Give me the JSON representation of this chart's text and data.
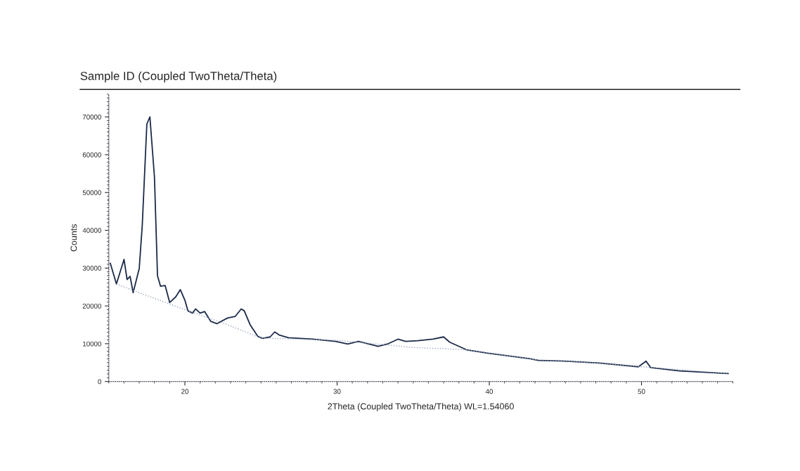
{
  "chart_data": {
    "type": "line",
    "title": "Sample ID (Coupled TwoTheta/Theta)",
    "xlabel": "2Theta (Coupled TwoTheta/Theta) WL=1.54060",
    "ylabel": "Counts",
    "xlim": [
      15,
      56
    ],
    "xticks": [
      20,
      30,
      40,
      50
    ],
    "ylim": [
      0,
      76000
    ],
    "yticks": [
      0,
      10000,
      20000,
      30000,
      40000,
      50000,
      60000,
      70000
    ],
    "grid": false,
    "legend": false,
    "marker": "none",
    "series": [
      {
        "color": "#1c2a48",
        "line_style": "solid",
        "x": [
          15.1,
          15.5,
          16.0,
          16.2,
          16.4,
          16.6,
          17.0,
          17.2,
          17.5,
          17.7,
          18.0,
          18.2,
          18.4,
          18.7,
          19.0,
          19.4,
          19.7,
          20.0,
          20.2,
          20.5,
          20.7,
          21.0,
          21.3,
          21.7,
          22.1,
          22.8,
          23.3,
          23.7,
          23.9,
          24.3,
          24.8,
          25.1,
          25.6,
          25.9,
          26.2,
          26.8,
          28.4,
          29.9,
          30.7,
          31.4,
          32.7,
          33.3,
          34.0,
          34.5,
          35.3,
          36.3,
          37.0,
          37.4,
          38.5,
          39.9,
          41.4,
          42.7,
          43.2,
          44.9,
          47.2,
          49.8,
          50.3,
          50.6,
          52.5,
          55.7
        ],
        "values": [
          31300,
          25800,
          32300,
          27000,
          27800,
          23500,
          29900,
          41400,
          68100,
          70000,
          54100,
          28000,
          25200,
          25400,
          20900,
          22400,
          24300,
          21500,
          18700,
          18100,
          19200,
          18100,
          18500,
          15900,
          15300,
          16800,
          17200,
          19200,
          18700,
          14900,
          11900,
          11400,
          11800,
          13100,
          12300,
          11600,
          11200,
          10600,
          9900,
          10600,
          9300,
          9900,
          11200,
          10600,
          10800,
          11200,
          11800,
          10400,
          8400,
          7500,
          6700,
          6000,
          5600,
          5400,
          4900,
          3900,
          5400,
          3700,
          2800,
          2100
        ]
      },
      {
        "color": "#9aa8c0",
        "line_style": "dotted",
        "x": [
          15.5,
          17.0,
          20.0,
          22.5,
          25.0,
          30.0,
          35.0,
          38.5,
          43.0,
          47.0,
          50.0,
          51.0,
          55.7
        ],
        "values": [
          25800,
          23500,
          19000,
          15500,
          11500,
          10900,
          9000,
          8400,
          5800,
          4900,
          3900,
          3600,
          2100
        ]
      }
    ]
  }
}
